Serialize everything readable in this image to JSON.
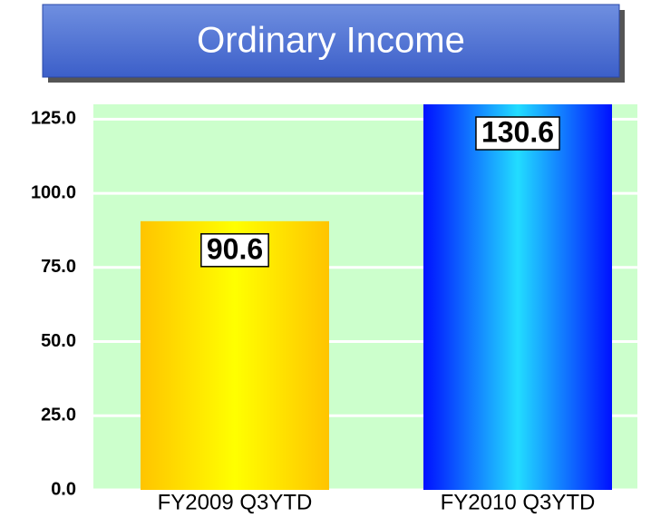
{
  "chart_data": {
    "type": "bar",
    "title": "Ordinary Income",
    "categories": [
      "FY2009 Q3YTD",
      "FY2010 Q3YTD"
    ],
    "values": [
      90.6,
      130.6
    ],
    "colors": [
      "#ffcc00",
      "#0022ff"
    ],
    "ylim": [
      0,
      130
    ],
    "yticks": [
      {
        "value": 0,
        "label": "0.0"
      },
      {
        "value": 25,
        "label": "25.0"
      },
      {
        "value": 50,
        "label": "50.0"
      },
      {
        "value": 75,
        "label": "75.0"
      },
      {
        "value": 100,
        "label": "100.0"
      },
      {
        "value": 125,
        "label": "125.0"
      }
    ],
    "grid": true
  }
}
